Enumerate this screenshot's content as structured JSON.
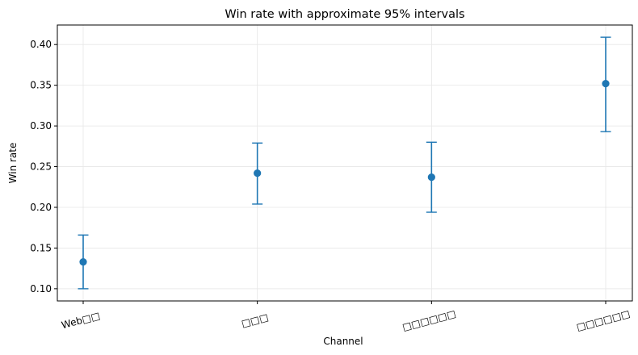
{
  "chart_data": {
    "type": "scatter",
    "title": "Win rate with approximate 95% intervals",
    "xlabel": "Channel",
    "ylabel": "Win rate",
    "categories": [
      "Web□□",
      "□□□",
      "□□□□□□",
      "□□□□□□"
    ],
    "series": [
      {
        "values": [
          0.133,
          0.242,
          0.237,
          0.352
        ],
        "lower": [
          0.1,
          0.204,
          0.194,
          0.293
        ],
        "upper": [
          0.166,
          0.279,
          0.28,
          0.409
        ]
      }
    ],
    "ylim": [
      0.085,
      0.424
    ],
    "yticks": [
      "0.10",
      "0.15",
      "0.20",
      "0.25",
      "0.30",
      "0.35",
      "0.40"
    ],
    "grid": true,
    "color": "#1f77b4"
  }
}
